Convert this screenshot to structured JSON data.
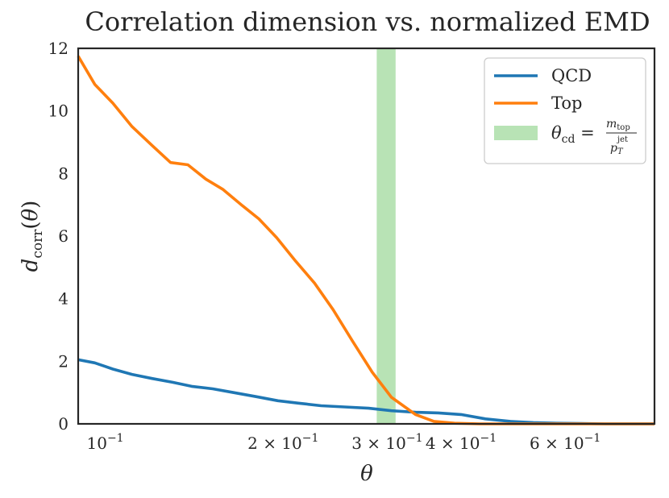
{
  "chart_data": {
    "type": "line",
    "title": "Correlation dimension vs. normalized EMD",
    "xlabel": "θ",
    "ylabel": "d_corr(θ)",
    "xscale": "log",
    "xlim": [
      0.09,
      0.85
    ],
    "ylim": [
      0,
      12
    ],
    "xticks": [
      {
        "value": 0.1,
        "base": "10",
        "exp": "−1"
      },
      {
        "value": 0.2,
        "mant": "2",
        "base": "10",
        "exp": "−1"
      },
      {
        "value": 0.3,
        "mant": "3",
        "base": "10",
        "exp": "−1"
      },
      {
        "value": 0.4,
        "mant": "4",
        "base": "10",
        "exp": "−1"
      },
      {
        "value": 0.6,
        "mant": "6",
        "base": "10",
        "exp": "−1"
      }
    ],
    "yticks": [
      0,
      2,
      4,
      6,
      8,
      10,
      12
    ],
    "band": {
      "name": "θ_cd = m_top / p_T^jet",
      "x0": 0.288,
      "x1": 0.31,
      "color": "#b8e3b5"
    },
    "series": [
      {
        "name": "QCD",
        "color": "#1f77b4",
        "x": [
          0.09,
          0.096,
          0.103,
          0.111,
          0.12,
          0.13,
          0.14,
          0.152,
          0.165,
          0.18,
          0.196,
          0.213,
          0.232,
          0.254,
          0.279,
          0.305,
          0.335,
          0.366,
          0.4,
          0.44,
          0.485,
          0.53,
          0.58,
          0.64,
          0.7,
          0.77,
          0.85
        ],
        "values": [
          2.05,
          1.95,
          1.75,
          1.58,
          1.45,
          1.33,
          1.2,
          1.12,
          1.0,
          0.87,
          0.74,
          0.66,
          0.58,
          0.54,
          0.5,
          0.42,
          0.37,
          0.35,
          0.3,
          0.16,
          0.08,
          0.04,
          0.02,
          0.01,
          0.0,
          0.0,
          0.0
        ]
      },
      {
        "name": "Top",
        "color": "#ff7f0e",
        "x": [
          0.09,
          0.096,
          0.103,
          0.111,
          0.12,
          0.129,
          0.138,
          0.148,
          0.158,
          0.17,
          0.182,
          0.195,
          0.21,
          0.226,
          0.243,
          0.262,
          0.283,
          0.305,
          0.335,
          0.36,
          0.39,
          0.43,
          0.48,
          0.55,
          0.65,
          0.75,
          0.85
        ],
        "values": [
          11.75,
          10.85,
          10.25,
          9.5,
          8.9,
          8.35,
          8.28,
          7.82,
          7.5,
          7.0,
          6.55,
          5.95,
          5.2,
          4.5,
          3.65,
          2.65,
          1.65,
          0.85,
          0.3,
          0.08,
          0.02,
          0.0,
          0.0,
          0.0,
          0.0,
          0.0,
          0.0
        ]
      }
    ],
    "legend": {
      "position": "top-right",
      "entries": [
        {
          "label": "QCD",
          "kind": "line",
          "color": "#1f77b4"
        },
        {
          "label": "Top",
          "kind": "line",
          "color": "#ff7f0e"
        },
        {
          "label": "θ_cd = m_top / p_T^jet",
          "kind": "patch",
          "color": "#b8e3b5"
        }
      ]
    }
  }
}
